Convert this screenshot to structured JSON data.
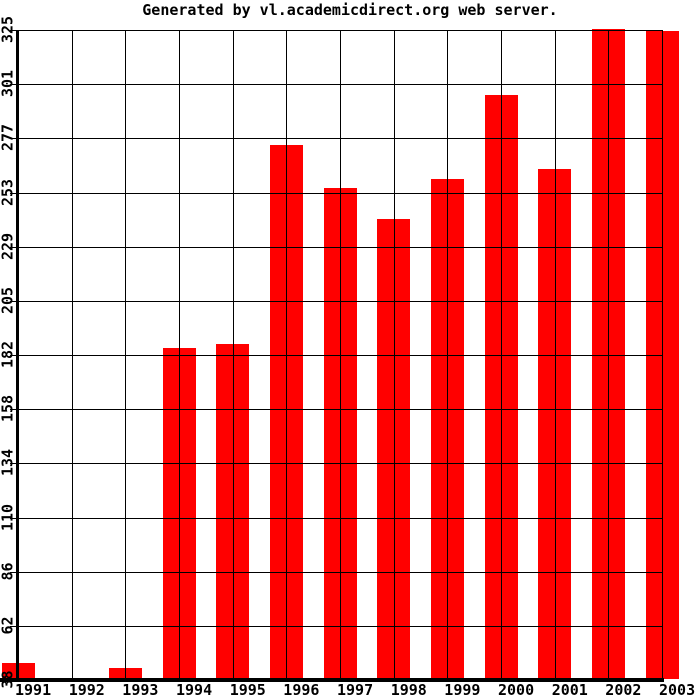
{
  "chart_data": {
    "type": "bar",
    "title": "Generated by vl.academicdirect.org web server.",
    "categories": [
      "1991",
      "1992",
      "1993",
      "1994",
      "1995",
      "1996",
      "1997",
      "1998",
      "1999",
      "2000",
      "2001",
      "2002",
      "2003"
    ],
    "values": [
      45,
      38,
      43,
      184,
      186,
      274,
      255,
      241,
      259,
      296,
      263,
      325,
      324
    ],
    "xlabel": "",
    "ylabel": "",
    "ylim": [
      38,
      325
    ],
    "yticks": [
      325,
      301,
      277,
      253,
      229,
      205,
      182,
      158,
      134,
      110,
      86,
      62,
      38
    ],
    "grid": true,
    "legend": "none",
    "bar_color": "#ff0000",
    "grid_color": "#000000",
    "background_color": "#ffffff",
    "text_color": "#000000"
  }
}
